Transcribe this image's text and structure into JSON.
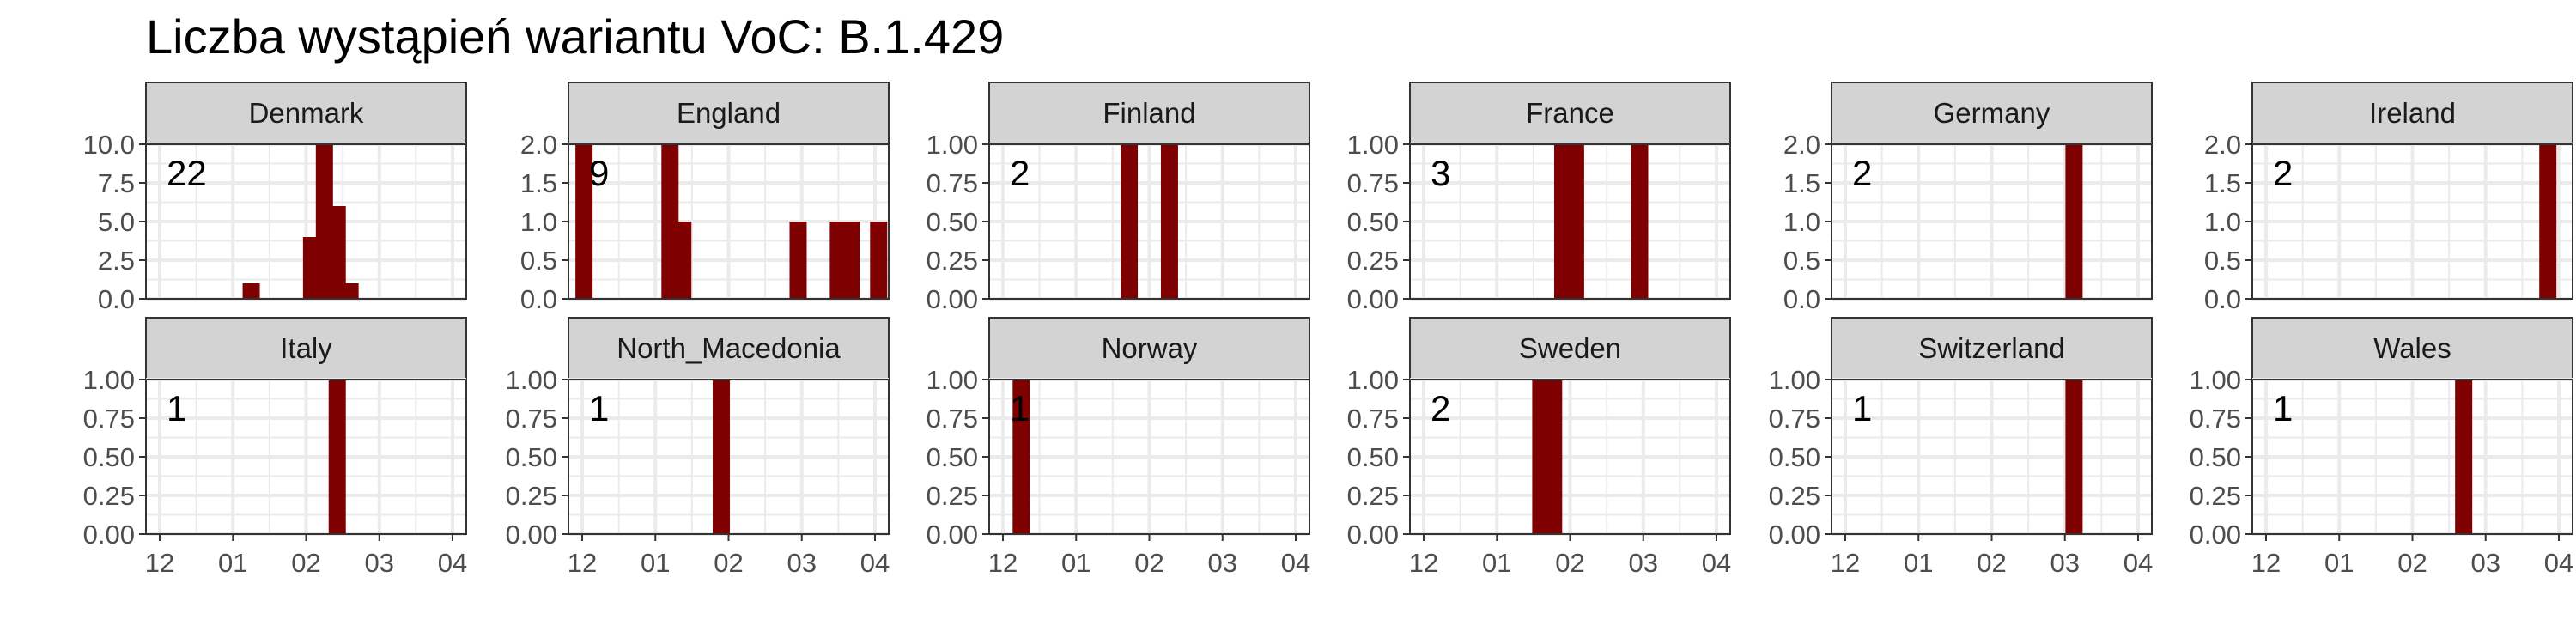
{
  "title": "Liczba wystąpień wariantu VoC: B.1.429",
  "colors": {
    "bar": "#7f0000",
    "strip": "#d3d3d3",
    "grid": "#ebebeb",
    "axis": "#333333",
    "text": "#4d4d4d"
  },
  "chart_data": {
    "type": "bar",
    "title": "Liczba wystąpień wariantu VoC: B.1.429",
    "x_ticks": [
      "12",
      "01",
      "02",
      "03",
      "04"
    ],
    "x_domain": [
      0,
      16
    ],
    "grid": true,
    "facets": [
      {
        "name": "Denmark",
        "total": "22",
        "ylim": [
          0,
          10
        ],
        "y_ticks": [
          "0.0",
          "2.5",
          "5.0",
          "7.5",
          "10.0"
        ],
        "bars": [
          {
            "x": 5.0,
            "y": 1
          },
          {
            "x": 8.3,
            "y": 4
          },
          {
            "x": 9.0,
            "y": 10
          },
          {
            "x": 9.7,
            "y": 6
          },
          {
            "x": 10.4,
            "y": 1
          }
        ]
      },
      {
        "name": "England",
        "total": "9",
        "ylim": [
          0,
          2
        ],
        "y_ticks": [
          "0.0",
          "0.5",
          "1.0",
          "1.5",
          "2.0"
        ],
        "bars": [
          {
            "x": 0.1,
            "y": 2
          },
          {
            "x": 4.8,
            "y": 2
          },
          {
            "x": 5.5,
            "y": 1
          },
          {
            "x": 11.8,
            "y": 1
          },
          {
            "x": 14.0,
            "y": 1
          },
          {
            "x": 14.7,
            "y": 1
          },
          {
            "x": 16.2,
            "y": 1
          }
        ]
      },
      {
        "name": "Finland",
        "total": "2",
        "ylim": [
          0,
          1
        ],
        "y_ticks": [
          "0.00",
          "0.25",
          "0.50",
          "0.75",
          "1.00"
        ],
        "bars": [
          {
            "x": 6.9,
            "y": 1
          },
          {
            "x": 9.1,
            "y": 1
          }
        ]
      },
      {
        "name": "France",
        "total": "3",
        "ylim": [
          0,
          1
        ],
        "y_ticks": [
          "0.00",
          "0.25",
          "0.50",
          "0.75",
          "1.00"
        ],
        "bars": [
          {
            "x": 7.6,
            "y": 1
          },
          {
            "x": 8.3,
            "y": 1
          },
          {
            "x": 11.8,
            "y": 1
          }
        ]
      },
      {
        "name": "Germany",
        "total": "2",
        "ylim": [
          0,
          2
        ],
        "y_ticks": [
          "0.0",
          "0.5",
          "1.0",
          "1.5",
          "2.0"
        ],
        "bars": [
          {
            "x": 12.5,
            "y": 2
          }
        ]
      },
      {
        "name": "Ireland",
        "total": "2",
        "ylim": [
          0,
          2
        ],
        "y_ticks": [
          "0.0",
          "0.5",
          "1.0",
          "1.5",
          "2.0"
        ],
        "bars": [
          {
            "x": 15.4,
            "y": 2
          }
        ]
      },
      {
        "name": "Italy",
        "total": "1",
        "ylim": [
          0,
          1
        ],
        "y_ticks": [
          "0.00",
          "0.25",
          "0.50",
          "0.75",
          "1.00"
        ],
        "bars": [
          {
            "x": 9.7,
            "y": 1
          }
        ]
      },
      {
        "name": "North_Macedonia",
        "total": "1",
        "ylim": [
          0,
          1
        ],
        "y_ticks": [
          "0.00",
          "0.25",
          "0.50",
          "0.75",
          "1.00"
        ],
        "bars": [
          {
            "x": 7.6,
            "y": 1
          }
        ]
      },
      {
        "name": "Norway",
        "total": "1",
        "ylim": [
          0,
          1
        ],
        "y_ticks": [
          "0.00",
          "0.25",
          "0.50",
          "0.75",
          "1.00"
        ],
        "bars": [
          {
            "x": 1.0,
            "y": 1
          }
        ]
      },
      {
        "name": "Sweden",
        "total": "2",
        "ylim": [
          0,
          1
        ],
        "y_ticks": [
          "0.00",
          "0.25",
          "0.50",
          "0.75",
          "1.00"
        ],
        "bars": [
          {
            "x": 6.4,
            "y": 1
          },
          {
            "x": 7.1,
            "y": 1
          }
        ]
      },
      {
        "name": "Switzerland",
        "total": "1",
        "ylim": [
          0,
          1
        ],
        "y_ticks": [
          "0.00",
          "0.25",
          "0.50",
          "0.75",
          "1.00"
        ],
        "bars": [
          {
            "x": 12.5,
            "y": 1
          }
        ]
      },
      {
        "name": "Wales",
        "total": "1",
        "ylim": [
          0,
          1
        ],
        "y_ticks": [
          "0.00",
          "0.25",
          "0.50",
          "0.75",
          "1.00"
        ],
        "bars": [
          {
            "x": 10.8,
            "y": 1
          }
        ]
      }
    ]
  }
}
